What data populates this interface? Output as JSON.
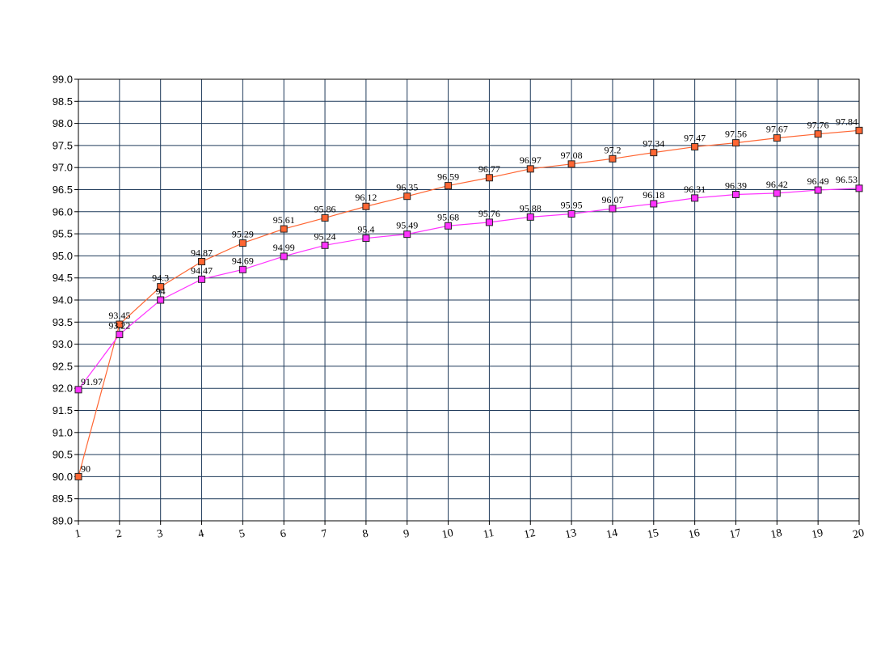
{
  "chart_data": {
    "type": "line",
    "title": "",
    "xlabel": "",
    "ylabel": "",
    "x": [
      1,
      2,
      3,
      4,
      5,
      6,
      7,
      8,
      9,
      10,
      11,
      12,
      13,
      14,
      15,
      16,
      17,
      18,
      19,
      20
    ],
    "x_tick_labels": [
      "1",
      "2",
      "3",
      "4",
      "5",
      "6",
      "7",
      "8",
      "9",
      "10",
      "11",
      "12",
      "13",
      "14",
      "15",
      "16",
      "17",
      "18",
      "19",
      "20"
    ],
    "ylim": [
      89.0,
      99.0
    ],
    "y_tick_labels": [
      "89.0",
      "89.5",
      "90.0",
      "90.5",
      "91.0",
      "91.5",
      "92.0",
      "92.5",
      "93.0",
      "93.5",
      "94.0",
      "94.5",
      "95.0",
      "95.5",
      "96.0",
      "96.5",
      "97.0",
      "97.5",
      "98.0",
      "98.5",
      "99.0"
    ],
    "grid": true,
    "legend": "none",
    "series": [
      {
        "color": "#ff6633",
        "marker": "square",
        "values": [
          90,
          93.45,
          94.3,
          94.87,
          95.29,
          95.61,
          95.86,
          96.12,
          96.35,
          96.59,
          96.77,
          96.97,
          97.08,
          97.2,
          97.34,
          97.47,
          97.56,
          97.67,
          97.76,
          97.84
        ],
        "labels": [
          "90",
          "93.45",
          "94.3",
          "94.87",
          "95.29",
          "95.61",
          "95.86",
          "96.12",
          "96.35",
          "96.59",
          "96.77",
          "96.97",
          "97.08",
          "97.2",
          "97.34",
          "97.47",
          "97.56",
          "97.67",
          "97.76",
          "97.84"
        ]
      },
      {
        "color": "#ff33ff",
        "marker": "square",
        "values": [
          91.97,
          93.22,
          94,
          94.47,
          94.69,
          94.99,
          95.24,
          95.4,
          95.49,
          95.68,
          95.76,
          95.88,
          95.95,
          96.07,
          96.18,
          96.31,
          96.39,
          96.42,
          96.49,
          96.53
        ],
        "labels": [
          "91.97",
          "93.22",
          "94",
          "94.47",
          "94.69",
          "94.99",
          "95.24",
          "95.4",
          "95.49",
          "95.68",
          "95.76",
          "95.88",
          "95.95",
          "96.07",
          "96.18",
          "96.31",
          "96.39",
          "96.42",
          "96.49",
          "96.53"
        ]
      }
    ]
  }
}
